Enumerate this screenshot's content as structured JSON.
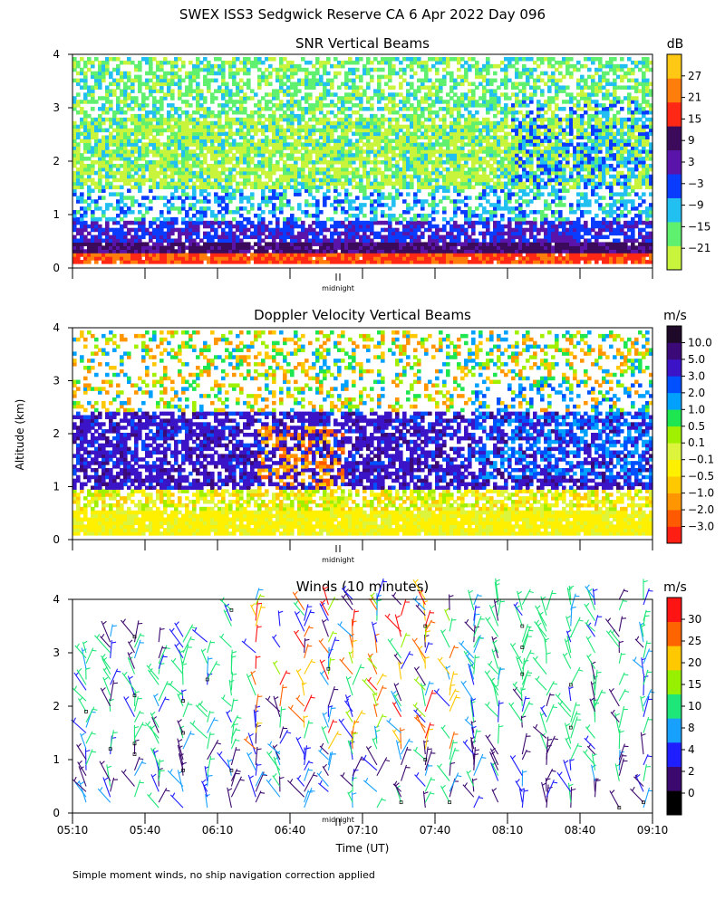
{
  "title": "SWEX ISS3 Sedgwick Reserve CA   6 Apr 2022 Day 096",
  "ylabel": "Altitude (km)",
  "xlabel": "Time (UT)",
  "midnight_label": "midnight",
  "footnote": "Simple moment winds, no ship navigation correction applied",
  "colors": {
    "snr": [
      "#c8f53c",
      "#5ef06e",
      "#22c0f0",
      "#0a3cff",
      "#5a14aa",
      "#3c0a5a",
      "#ff2814",
      "#ff7d0a",
      "#ffc814"
    ],
    "doppler": [
      "#ff1e14",
      "#ff5a00",
      "#ff9600",
      "#ffc800",
      "#fff000",
      "#dcf53c",
      "#a0f000",
      "#1ee650",
      "#00a0ff",
      "#0050ff",
      "#3c14c8",
      "#3c0a78",
      "#1e0a28"
    ],
    "winds": [
      "#000000",
      "#3c0a6e",
      "#1e1eff",
      "#18a0ff",
      "#1ee678",
      "#96f000",
      "#ffc800",
      "#ff6400",
      "#ff1414"
    ]
  },
  "chart_data": [
    {
      "type": "heatmap",
      "title": "SNR Vertical Beams",
      "unit": "dB",
      "xlim": [
        "05:10",
        "09:10"
      ],
      "ylim": [
        0,
        4
      ],
      "y_ticks": [
        0,
        1,
        2,
        3,
        4
      ],
      "colorbar_ticks": [
        "27",
        "21",
        "15",
        "9",
        "3",
        "−3",
        "−9",
        "−15",
        "−21"
      ],
      "series": [
        {
          "altitude_range_km": [
            0.0,
            0.5
          ],
          "snr_db": [
            21,
            24
          ]
        },
        {
          "altitude_range_km": [
            0.5,
            1.0
          ],
          "snr_db": [
            3,
            9
          ]
        },
        {
          "altitude_range_km": [
            1.0,
            1.5
          ],
          "snr_db": [
            -9,
            -15
          ]
        },
        {
          "altitude_range_km": [
            1.5,
            3.0
          ],
          "snr_db": [
            -15,
            -21
          ]
        },
        {
          "altitude_range_km": [
            3.0,
            4.0
          ],
          "snr_db": [
            -15,
            -21
          ]
        }
      ]
    },
    {
      "type": "heatmap",
      "title": "Doppler Velocity Vertical Beams",
      "unit": "m/s",
      "xlim": [
        "05:10",
        "09:10"
      ],
      "ylim": [
        0,
        4
      ],
      "y_ticks": [
        0,
        1,
        2,
        3,
        4
      ],
      "colorbar_ticks": [
        "10.0",
        "5.0",
        "3.0",
        "2.0",
        "1.0",
        "0.5",
        "0.1",
        "−0.1",
        "−0.5",
        "−1.0",
        "−2.0",
        "−3.0"
      ],
      "series": [
        {
          "altitude_range_km": [
            0.0,
            1.0
          ],
          "velocity_ms": [
            -0.1,
            0.1
          ]
        },
        {
          "altitude_range_km": [
            1.0,
            2.5
          ],
          "velocity_ms": [
            3.0,
            5.0
          ]
        },
        {
          "altitude_range_km": [
            2.5,
            4.0
          ],
          "velocity_ms": [
            -1.0,
            1.0
          ]
        }
      ]
    },
    {
      "type": "scatter",
      "title": "Winds (10 minutes)",
      "unit": "m/s",
      "x_ticks": [
        "05:10",
        "05:40",
        "06:10",
        "06:40",
        "07:10",
        "07:40",
        "08:10",
        "08:40",
        "09:10"
      ],
      "xlim": [
        "05:10",
        "09:10"
      ],
      "ylim": [
        0,
        4
      ],
      "y_ticks": [
        0,
        1,
        2,
        3,
        4
      ],
      "colorbar_ticks": [
        "30",
        "25",
        "20",
        "15",
        "10",
        "8",
        "4",
        "2",
        "0"
      ],
      "series": [
        {
          "time_range": [
            "05:10",
            "06:10"
          ],
          "altitude_range_km": [
            0.1,
            3.4
          ],
          "speed_ms": [
            2,
            10
          ]
        },
        {
          "time_range": [
            "06:10",
            "07:40"
          ],
          "altitude_range_km": [
            0.1,
            4.0
          ],
          "speed_ms": [
            8,
            25
          ]
        },
        {
          "time_range": [
            "07:40",
            "09:10"
          ],
          "altitude_range_km": [
            0.1,
            4.0
          ],
          "speed_ms": [
            2,
            15
          ]
        }
      ]
    }
  ]
}
